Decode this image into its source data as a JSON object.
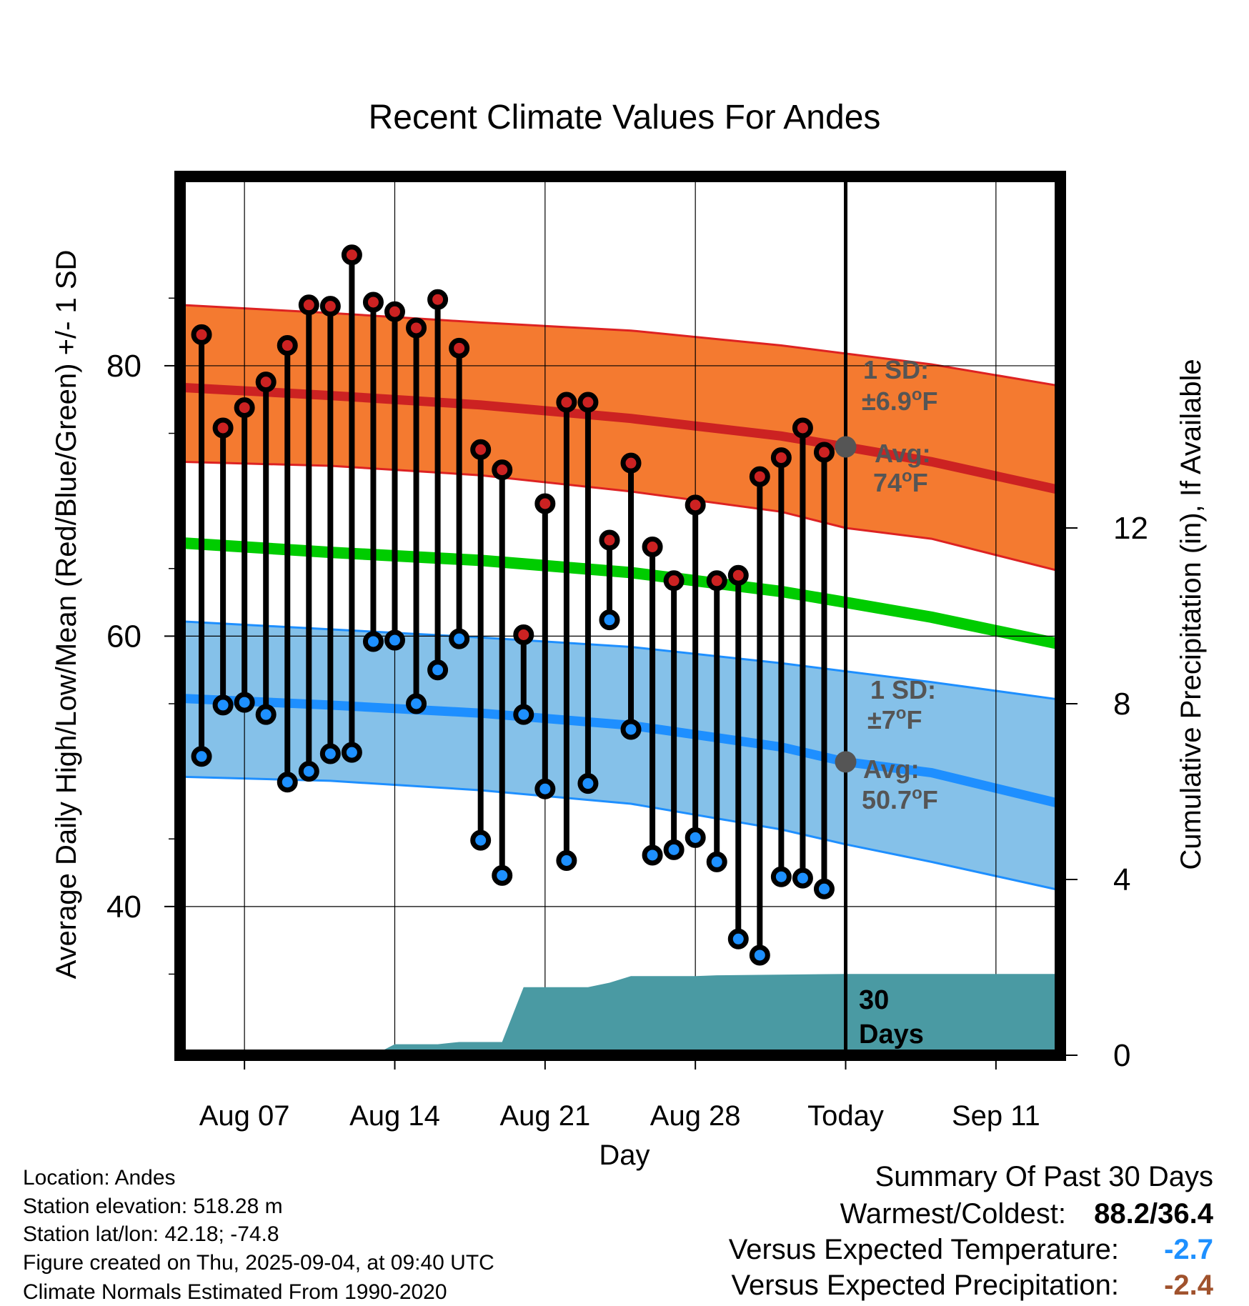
{
  "chart_data": {
    "type": "line",
    "title": "Recent Climate Values For Andes",
    "xlabel": "Day",
    "ylabel_left": "Average Daily High/Low/Mean (Red/Blue/Green) +/- 1 SD",
    "ylabel_right": "Cumulative Precipitation (in), If Available",
    "x_tick_labels": [
      "Aug 07",
      "Aug 14",
      "Aug 21",
      "Aug 28",
      "Today",
      "Sep 11"
    ],
    "y_ticks_left": [
      "40",
      "60",
      "80"
    ],
    "y_ticks_right": [
      "0",
      "4",
      "8",
      "12"
    ],
    "ylim_left": [
      29,
      94
    ],
    "ylim_right": [
      0,
      20
    ],
    "x_dates_range": [
      "Aug 04",
      "Sep 14"
    ],
    "today_marker": "Sep 04",
    "grid": true,
    "normals": {
      "dates": [
        "Aug 04",
        "Aug 11",
        "Aug 18",
        "Aug 25",
        "Sep 01",
        "Sep 04",
        "Sep 08",
        "Sep 14"
      ],
      "high_avg": [
        78.4,
        77.8,
        77.1,
        76.1,
        74.8,
        74.0,
        72.9,
        70.8
      ],
      "high_upper": [
        84.5,
        83.9,
        83.2,
        82.6,
        81.5,
        80.9,
        80.1,
        78.5
      ],
      "high_lower": [
        72.9,
        72.6,
        71.9,
        70.7,
        69.2,
        68.0,
        67.2,
        64.8
      ],
      "mean": [
        66.9,
        66.2,
        65.6,
        64.7,
        63.3,
        62.5,
        61.4,
        59.4
      ],
      "low_avg": [
        55.4,
        54.9,
        54.3,
        53.4,
        51.8,
        50.7,
        49.9,
        47.6
      ],
      "low_upper": [
        61.1,
        60.5,
        59.9,
        59.2,
        58.0,
        57.4,
        56.6,
        55.3
      ],
      "low_lower": [
        49.6,
        49.3,
        48.6,
        47.6,
        45.7,
        44.6,
        43.3,
        41.2
      ]
    },
    "series": [
      {
        "name": "High",
        "color": "#cc2222",
        "dates": [
          "Aug 05",
          "Aug 06",
          "Aug 07",
          "Aug 08",
          "Aug 09",
          "Aug 10",
          "Aug 11",
          "Aug 12",
          "Aug 13",
          "Aug 14",
          "Aug 15",
          "Aug 16",
          "Aug 17",
          "Aug 18",
          "Aug 19",
          "Aug 20",
          "Aug 21",
          "Aug 22",
          "Aug 23",
          "Aug 24",
          "Aug 25",
          "Aug 26",
          "Aug 27",
          "Aug 28",
          "Aug 29",
          "Aug 30",
          "Aug 31",
          "Sep 01",
          "Sep 02",
          "Sep 03"
        ],
        "values": [
          82.3,
          75.4,
          76.9,
          78.8,
          81.5,
          84.5,
          84.4,
          88.2,
          84.7,
          84.0,
          82.8,
          84.9,
          81.3,
          73.8,
          72.3,
          60.1,
          69.8,
          77.3,
          77.3,
          67.1,
          72.8,
          66.6,
          64.1,
          69.7,
          64.1,
          64.5,
          71.8,
          73.2,
          75.4,
          73.6
        ]
      },
      {
        "name": "Low",
        "color": "#1e90ff",
        "dates": [
          "Aug 05",
          "Aug 06",
          "Aug 07",
          "Aug 08",
          "Aug 09",
          "Aug 10",
          "Aug 11",
          "Aug 12",
          "Aug 13",
          "Aug 14",
          "Aug 15",
          "Aug 16",
          "Aug 17",
          "Aug 18",
          "Aug 19",
          "Aug 20",
          "Aug 21",
          "Aug 22",
          "Aug 23",
          "Aug 24",
          "Aug 25",
          "Aug 26",
          "Aug 27",
          "Aug 28",
          "Aug 29",
          "Aug 30",
          "Aug 31",
          "Sep 01",
          "Sep 02",
          "Sep 03"
        ],
        "values": [
          51.1,
          54.9,
          55.1,
          54.2,
          49.2,
          50.0,
          51.3,
          51.4,
          59.6,
          59.7,
          55.0,
          57.5,
          59.8,
          44.9,
          42.3,
          54.2,
          48.7,
          43.4,
          49.1,
          61.2,
          53.1,
          43.8,
          44.2,
          45.1,
          43.3,
          37.6,
          36.4,
          42.2,
          42.1,
          41.3
        ]
      },
      {
        "name": "Cumulative Precipitation",
        "color": "#4a9aa3",
        "dates": [
          "Aug 04",
          "Aug 13",
          "Aug 14",
          "Aug 16",
          "Aug 17",
          "Aug 19",
          "Aug 20",
          "Aug 23",
          "Aug 24",
          "Aug 25",
          "Aug 28",
          "Aug 29",
          "Sep 04",
          "Sep 14"
        ],
        "values": [
          0,
          0,
          0.25,
          0.25,
          0.3,
          0.3,
          1.55,
          1.55,
          1.65,
          1.8,
          1.8,
          1.82,
          1.85,
          1.85
        ]
      }
    ],
    "annotations": {
      "high_sd_label": "1 SD:",
      "high_sd_value_prefix": "±6.9",
      "high_avg_label": "Avg:",
      "high_avg_value": "74",
      "low_sd_label": "1 SD:",
      "low_sd_value_prefix": "±7",
      "low_avg_label": "Avg:",
      "low_avg_value": "50.7",
      "degree_sign": "o",
      "unit": "F",
      "precip_label_1": "30",
      "precip_label_2": "Days"
    },
    "colors": {
      "high_band": "#f47a30",
      "high_edge": "#dd2222",
      "high_avg": "#cc2222",
      "mean_line": "#00cc00",
      "low_band": "#85c1e9",
      "low_edge": "#1e8fff",
      "low_avg": "#1e8fff",
      "precip_fill": "#4a9aa3",
      "annotation_text": "#555555",
      "today_dot": "#555555"
    }
  },
  "station_info": {
    "location": "Location: Andes",
    "elevation": "Station elevation: 518.28 m",
    "latlon": "Station lat/lon: 42.18; -74.8",
    "created": "Figure created on Thu, 2025-09-04, at 09:40 UTC",
    "normals": "Climate Normals Estimated From 1990-2020"
  },
  "summary": {
    "title": "Summary Of Past 30 Days",
    "warm_cold_label": "Warmest/Coldest:",
    "warm_cold_value": "88.2/36.4",
    "temp_label": "Versus Expected Temperature:",
    "temp_value": "-2.7",
    "temp_color": "#1e90ff",
    "precip_label": "Versus Expected Precipitation:",
    "precip_value": "-2.4",
    "precip_color": "#a0522d"
  }
}
